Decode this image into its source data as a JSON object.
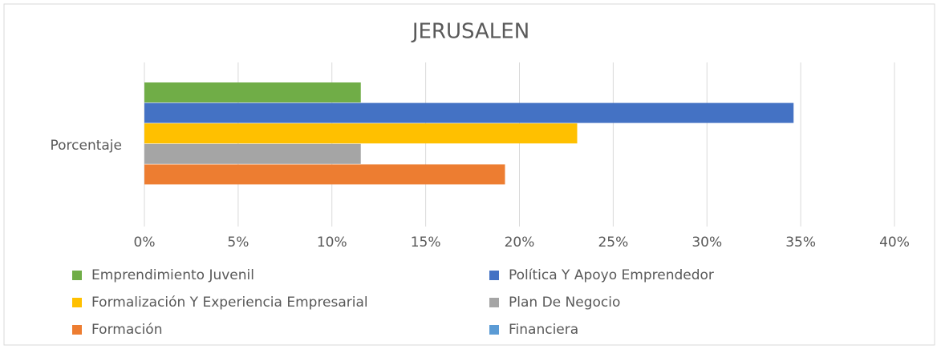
{
  "chart_data": {
    "type": "bar",
    "orientation": "horizontal",
    "title": "JERUSALEN",
    "categories": [
      "Porcentaje"
    ],
    "series": [
      {
        "name": "Emprendimiento Juvenil",
        "color": "#70ad47",
        "values": [
          11.54
        ]
      },
      {
        "name": "Política Y Apoyo Emprendedor",
        "color": "#4472c4",
        "values": [
          34.62
        ]
      },
      {
        "name": "Formalización Y Experiencia Empresarial",
        "color": "#ffc000",
        "values": [
          23.08
        ]
      },
      {
        "name": "Plan De Negocio",
        "color": "#a5a5a5",
        "values": [
          11.54
        ]
      },
      {
        "name": "Formación",
        "color": "#ed7d31",
        "values": [
          19.23
        ]
      },
      {
        "name": "Financiera",
        "color": "#5b9bd5",
        "values": [
          0
        ]
      }
    ],
    "xlim": [
      0,
      40
    ],
    "xticks": [
      {
        "value": 0,
        "label": "0%"
      },
      {
        "value": 5,
        "label": "5%"
      },
      {
        "value": 10,
        "label": "10%"
      },
      {
        "value": 15,
        "label": "15%"
      },
      {
        "value": 20,
        "label": "20%"
      },
      {
        "value": 25,
        "label": "25%"
      },
      {
        "value": 30,
        "label": "30%"
      },
      {
        "value": 35,
        "label": "35%"
      },
      {
        "value": 40,
        "label": "40%"
      }
    ],
    "grid": true,
    "legend": "bottom"
  }
}
